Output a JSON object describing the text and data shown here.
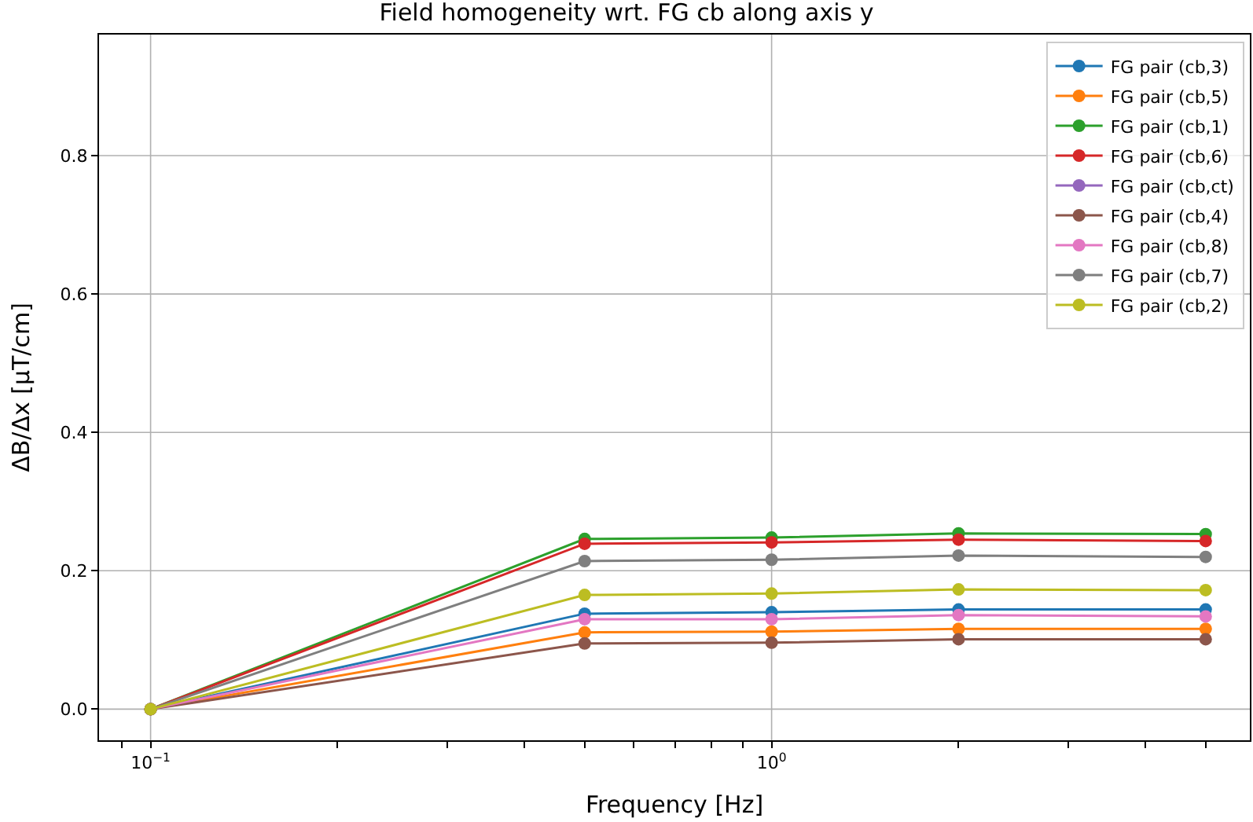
{
  "chart_data": {
    "type": "line",
    "title": "Field homogeneity wrt. FG cb along axis y",
    "xlabel": "Frequency [Hz]",
    "ylabel": "ΔB/Δx [μT/cm]",
    "x": [
      0.1,
      0.5,
      1,
      2,
      5
    ],
    "log": "x",
    "xlim": [
      0.0826,
      5.89
    ],
    "xticks": [
      {
        "value": 0.09,
        "label": null
      },
      {
        "value": 0.1,
        "label": "10$^{−1}$"
      },
      {
        "value": 0.2,
        "label": null
      },
      {
        "value": 0.3,
        "label": null
      },
      {
        "value": 0.4,
        "label": null
      },
      {
        "value": 0.5,
        "label": null
      },
      {
        "value": 0.6,
        "label": null
      },
      {
        "value": 0.7,
        "label": null
      },
      {
        "value": 0.8,
        "label": null
      },
      {
        "value": 0.9,
        "label": null
      },
      {
        "value": 1,
        "label": "10$^{0}$"
      },
      {
        "value": 2,
        "label": null
      },
      {
        "value": 3,
        "label": null
      },
      {
        "value": 4,
        "label": null
      },
      {
        "value": 5,
        "label": null
      }
    ],
    "ylim": [
      -0.045,
      0.975
    ],
    "yticks": [
      {
        "value": 0,
        "label": "0.0"
      },
      {
        "value": 0.2,
        "label": "0.2"
      },
      {
        "value": 0.4,
        "label": "0.4"
      },
      {
        "value": 0.6,
        "label": "0.6"
      },
      {
        "value": 0.8,
        "label": "0.8"
      }
    ],
    "grid": true,
    "legend": "top right",
    "marker": "circle",
    "line_style": "solid",
    "series": [
      {
        "name": "FG pair (cb,3)",
        "color": "#1f77b4",
        "values": [
          0,
          0.138,
          0.14,
          0.144,
          0.144
        ]
      },
      {
        "name": "FG pair (cb,5)",
        "color": "#ff7f0e",
        "values": [
          0,
          0.111,
          0.112,
          0.116,
          0.116
        ]
      },
      {
        "name": "FG pair (cb,1)",
        "color": "#2ca02c",
        "values": [
          0,
          0.246,
          0.248,
          0.254,
          0.253
        ]
      },
      {
        "name": "FG pair (cb,6)",
        "color": "#d62728",
        "values": [
          0,
          0.239,
          0.241,
          0.245,
          0.243
        ]
      },
      {
        "name": "FG pair (cb,ct)",
        "color": "#9467bd",
        "values": [
          null,
          null,
          null,
          null,
          null
        ]
      },
      {
        "name": "FG pair (cb,4)",
        "color": "#8c564b",
        "values": [
          0,
          0.095,
          0.096,
          0.101,
          0.101
        ]
      },
      {
        "name": "FG pair (cb,8)",
        "color": "#e377c2",
        "values": [
          0,
          0.13,
          0.13,
          0.136,
          0.134
        ]
      },
      {
        "name": "FG pair (cb,7)",
        "color": "#7f7f7f",
        "values": [
          0,
          0.214,
          0.216,
          0.222,
          0.22
        ]
      },
      {
        "name": "FG pair (cb,2)",
        "color": "#bcbd22",
        "values": [
          0,
          0.165,
          0.167,
          0.173,
          0.172
        ]
      }
    ]
  }
}
